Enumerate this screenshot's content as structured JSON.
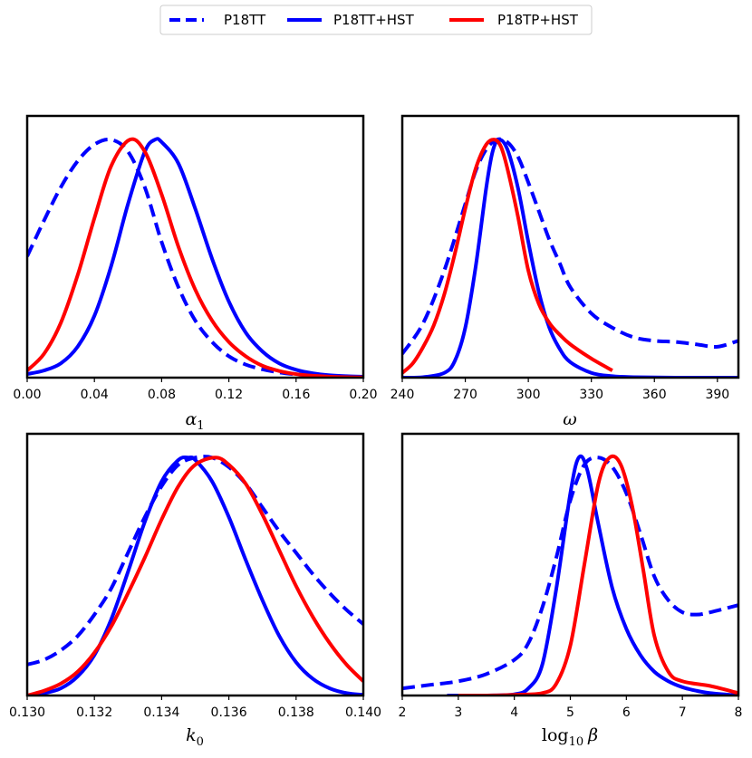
{
  "legend": {
    "entries": [
      {
        "label": "P18TT",
        "color": "#0000ff",
        "style": "dashed"
      },
      {
        "label": "P18TT+HST",
        "color": "#0000ff",
        "style": "solid"
      },
      {
        "label": "P18TP+HST",
        "color": "#ff0000",
        "style": "solid"
      }
    ],
    "placement": "top-center"
  },
  "chart_data": [
    {
      "type": "line",
      "xlabel": "α",
      "xlabel_sub": "1",
      "xlim": [
        0.0,
        0.2
      ],
      "ylim": [
        0,
        1.1
      ],
      "xticks": [
        "0.00",
        "0.04",
        "0.08",
        "0.12",
        "0.16",
        "0.20"
      ],
      "xtick_values": [
        0.0,
        0.04,
        0.08,
        0.12,
        0.16,
        0.2
      ],
      "series": [
        {
          "name": "P18TT",
          "x": [
            0.0,
            0.01,
            0.02,
            0.03,
            0.04,
            0.05,
            0.06,
            0.07,
            0.08,
            0.09,
            0.1,
            0.11,
            0.12,
            0.13,
            0.14,
            0.15,
            0.16,
            0.17,
            0.18,
            0.19,
            0.2
          ],
          "y": [
            0.51,
            0.66,
            0.8,
            0.91,
            0.98,
            1.0,
            0.95,
            0.8,
            0.57,
            0.38,
            0.24,
            0.15,
            0.09,
            0.055,
            0.035,
            0.022,
            0.014,
            0.009,
            0.006,
            0.004,
            0.003
          ]
        },
        {
          "name": "P18TT+HST",
          "x": [
            0.0,
            0.01,
            0.02,
            0.03,
            0.04,
            0.05,
            0.06,
            0.07,
            0.076,
            0.08,
            0.09,
            0.1,
            0.11,
            0.12,
            0.13,
            0.14,
            0.15,
            0.16,
            0.17,
            0.18,
            0.19,
            0.2
          ],
          "y": [
            0.015,
            0.03,
            0.06,
            0.13,
            0.26,
            0.47,
            0.73,
            0.95,
            1.0,
            0.99,
            0.9,
            0.71,
            0.5,
            0.32,
            0.19,
            0.11,
            0.06,
            0.033,
            0.018,
            0.01,
            0.006,
            0.004
          ]
        },
        {
          "name": "P18TP+HST",
          "x": [
            0.0,
            0.01,
            0.02,
            0.03,
            0.04,
            0.05,
            0.061,
            0.07,
            0.08,
            0.09,
            0.1,
            0.11,
            0.12,
            0.13,
            0.14,
            0.15,
            0.16,
            0.17,
            0.18,
            0.19,
            0.2
          ],
          "y": [
            0.03,
            0.1,
            0.23,
            0.43,
            0.67,
            0.89,
            1.0,
            0.95,
            0.77,
            0.55,
            0.37,
            0.24,
            0.15,
            0.09,
            0.05,
            0.028,
            0.015,
            0.008,
            0.004,
            0.002,
            0.001
          ]
        }
      ]
    },
    {
      "type": "line",
      "xlabel": "ω",
      "xlabel_sub": "",
      "xlim": [
        240,
        400
      ],
      "ylim": [
        0,
        1.1
      ],
      "xticks": [
        "240",
        "270",
        "300",
        "330",
        "360",
        "390"
      ],
      "xtick_values": [
        240,
        270,
        300,
        330,
        360,
        390
      ],
      "series": [
        {
          "name": "P18TT",
          "x": [
            240,
            250,
            260,
            270,
            275,
            280,
            285,
            290,
            295,
            300,
            305,
            310,
            315,
            320,
            330,
            340,
            350,
            360,
            370,
            380,
            390,
            400
          ],
          "y": [
            0.1,
            0.23,
            0.45,
            0.73,
            0.87,
            0.96,
            1.0,
            0.99,
            0.93,
            0.82,
            0.7,
            0.58,
            0.48,
            0.38,
            0.27,
            0.21,
            0.17,
            0.155,
            0.15,
            0.14,
            0.13,
            0.155
          ]
        },
        {
          "name": "P18TT+HST",
          "x": [
            240,
            250,
            260,
            265,
            270,
            275,
            280,
            283,
            286,
            290,
            295,
            300,
            305,
            310,
            315,
            320,
            330,
            340,
            350,
            370,
            400
          ],
          "y": [
            0.0,
            0.002,
            0.02,
            0.07,
            0.21,
            0.47,
            0.8,
            0.95,
            1.0,
            0.96,
            0.8,
            0.57,
            0.36,
            0.21,
            0.12,
            0.065,
            0.02,
            0.006,
            0.002,
            0.0,
            0.0
          ]
        },
        {
          "name": "P18TP+HST",
          "x": [
            240,
            245,
            250,
            255,
            260,
            265,
            270,
            275,
            280,
            284,
            287,
            290,
            295,
            300,
            305,
            310,
            315,
            320,
            330,
            340
          ],
          "y": [
            0.02,
            0.06,
            0.13,
            0.22,
            0.35,
            0.52,
            0.71,
            0.88,
            0.98,
            1.0,
            0.97,
            0.88,
            0.68,
            0.45,
            0.31,
            0.23,
            0.18,
            0.14,
            0.08,
            0.03
          ]
        }
      ]
    },
    {
      "type": "line",
      "xlabel": "k",
      "xlabel_sub": "0",
      "xlim": [
        0.13,
        0.14
      ],
      "ylim": [
        0,
        1.1
      ],
      "xticks": [
        "0.130",
        "0.132",
        "0.134",
        "0.136",
        "0.138",
        "0.140"
      ],
      "xtick_values": [
        0.13,
        0.132,
        0.134,
        0.136,
        0.138,
        0.14
      ],
      "series": [
        {
          "name": "P18TT",
          "x": [
            0.13,
            0.1305,
            0.131,
            0.1315,
            0.132,
            0.1325,
            0.133,
            0.1335,
            0.134,
            0.1345,
            0.135,
            0.1355,
            0.136,
            0.1365,
            0.137,
            0.1375,
            0.138,
            0.1385,
            0.139,
            0.1395,
            0.14
          ],
          "y": [
            0.13,
            0.15,
            0.19,
            0.25,
            0.34,
            0.45,
            0.6,
            0.75,
            0.88,
            0.97,
            1.0,
            1.0,
            0.96,
            0.89,
            0.79,
            0.69,
            0.6,
            0.51,
            0.43,
            0.36,
            0.3
          ]
        },
        {
          "name": "P18TT+HST",
          "x": [
            0.13,
            0.1305,
            0.131,
            0.1315,
            0.132,
            0.1325,
            0.133,
            0.1335,
            0.134,
            0.1345,
            0.1348,
            0.135,
            0.1355,
            0.136,
            0.1365,
            0.137,
            0.1375,
            0.138,
            0.1385,
            0.139,
            0.1395,
            0.14
          ],
          "y": [
            0.0,
            0.01,
            0.03,
            0.08,
            0.17,
            0.32,
            0.52,
            0.73,
            0.9,
            0.99,
            1.0,
            0.99,
            0.9,
            0.75,
            0.57,
            0.4,
            0.25,
            0.14,
            0.07,
            0.03,
            0.01,
            0.003
          ]
        },
        {
          "name": "P18TP+HST",
          "x": [
            0.13,
            0.1305,
            0.131,
            0.1315,
            0.132,
            0.1325,
            0.133,
            0.1335,
            0.134,
            0.1345,
            0.135,
            0.1356,
            0.136,
            0.1365,
            0.137,
            0.1375,
            0.138,
            0.1385,
            0.139,
            0.1395,
            0.14
          ],
          "y": [
            0.0,
            0.02,
            0.05,
            0.1,
            0.18,
            0.29,
            0.43,
            0.58,
            0.74,
            0.88,
            0.97,
            1.0,
            0.97,
            0.89,
            0.76,
            0.61,
            0.46,
            0.33,
            0.22,
            0.13,
            0.06
          ]
        }
      ]
    },
    {
      "type": "line",
      "xlabel": "log",
      "xlabel_sub": "10",
      "xlabel_suffix": "β",
      "xlim": [
        2,
        8
      ],
      "ylim": [
        0,
        1.1
      ],
      "xticks": [
        "2",
        "3",
        "4",
        "5",
        "6",
        "7",
        "8"
      ],
      "xtick_values": [
        2,
        3,
        4,
        5,
        6,
        7,
        8
      ],
      "series": [
        {
          "name": "P18TT",
          "x": [
            2.0,
            2.5,
            3.0,
            3.5,
            4.0,
            4.25,
            4.5,
            4.75,
            5.0,
            5.25,
            5.5,
            5.75,
            6.0,
            6.25,
            6.5,
            6.75,
            7.0,
            7.25,
            7.5,
            8.0
          ],
          "y": [
            0.03,
            0.045,
            0.06,
            0.09,
            0.15,
            0.22,
            0.37,
            0.58,
            0.82,
            0.97,
            1.0,
            0.96,
            0.85,
            0.68,
            0.5,
            0.4,
            0.35,
            0.34,
            0.35,
            0.38
          ]
        },
        {
          "name": "P18TT+HST",
          "x": [
            2.8,
            3.5,
            4.0,
            4.25,
            4.5,
            4.75,
            5.0,
            5.15,
            5.3,
            5.5,
            5.75,
            6.0,
            6.25,
            6.5,
            6.75,
            7.0,
            7.25,
            7.5,
            8.0
          ],
          "y": [
            0.0,
            0.0,
            0.005,
            0.03,
            0.13,
            0.45,
            0.85,
            1.0,
            0.95,
            0.72,
            0.45,
            0.28,
            0.17,
            0.1,
            0.06,
            0.035,
            0.02,
            0.01,
            0.0
          ]
        },
        {
          "name": "P18TP+HST",
          "x": [
            3.0,
            3.5,
            4.0,
            4.5,
            4.75,
            5.0,
            5.25,
            5.5,
            5.7,
            5.9,
            6.1,
            6.3,
            6.5,
            6.75,
            7.0,
            7.5,
            8.0
          ],
          "y": [
            0.0,
            0.0,
            0.003,
            0.01,
            0.05,
            0.21,
            0.55,
            0.89,
            1.0,
            0.97,
            0.8,
            0.53,
            0.25,
            0.1,
            0.06,
            0.04,
            0.01
          ]
        }
      ]
    }
  ]
}
